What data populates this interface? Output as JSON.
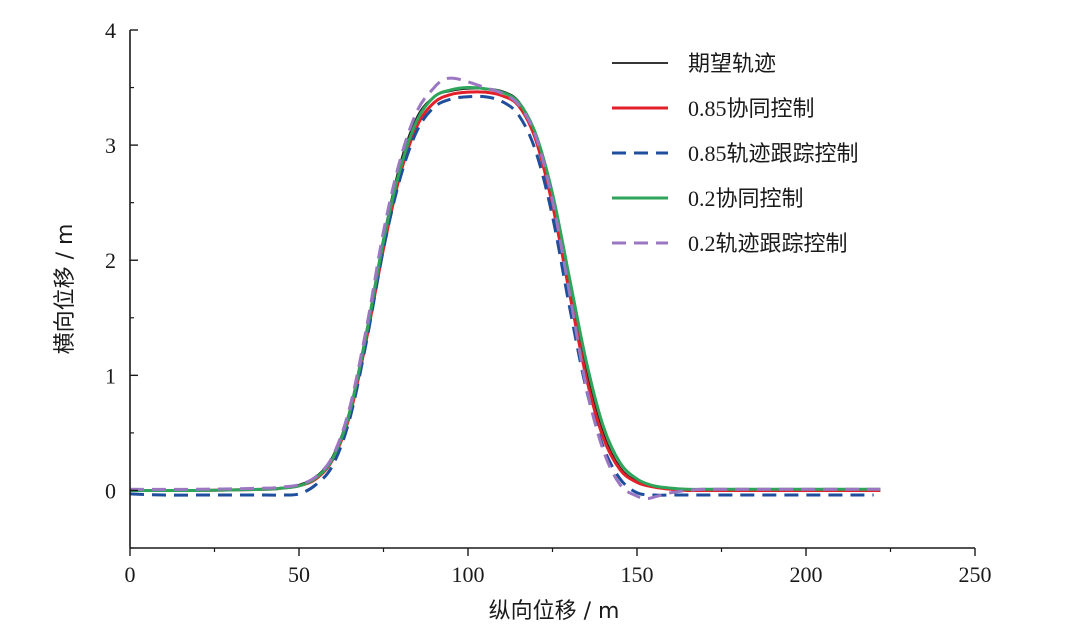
{
  "chart_data": {
    "type": "line",
    "xlabel": "纵向位移 / m",
    "ylabel": "横向位移 / m",
    "xlim": [
      0,
      250
    ],
    "ylim": [
      -0.5,
      4
    ],
    "xticks": [
      "0",
      "50",
      "100",
      "150",
      "200",
      "250"
    ],
    "yticks": [
      "0",
      "1",
      "2",
      "3",
      "4"
    ],
    "grid": false,
    "legend_position": "top-right",
    "series": [
      {
        "name": "期望轨迹",
        "color": "#1a1a1a",
        "dash": "solid",
        "x": [
          0,
          20,
          40,
          45,
          50,
          55,
          60,
          65,
          70,
          75,
          80,
          85,
          90,
          95,
          100,
          105,
          110,
          115,
          120,
          125,
          130,
          135,
          140,
          145,
          150,
          155,
          160,
          165,
          170,
          180,
          200,
          222
        ],
        "y": [
          0,
          0,
          0.01,
          0.02,
          0.05,
          0.12,
          0.3,
          0.7,
          1.4,
          2.2,
          2.85,
          3.25,
          3.42,
          3.47,
          3.49,
          3.49,
          3.47,
          3.38,
          3.1,
          2.55,
          1.8,
          1.05,
          0.5,
          0.2,
          0.08,
          0.03,
          0.01,
          0,
          0,
          0,
          0,
          0
        ]
      },
      {
        "name": "0.85协同控制",
        "color": "#e3202a",
        "dash": "solid",
        "x": [
          0,
          20,
          40,
          45,
          50,
          55,
          60,
          65,
          70,
          75,
          80,
          85,
          90,
          95,
          100,
          105,
          110,
          115,
          120,
          125,
          130,
          135,
          140,
          145,
          150,
          155,
          160,
          165,
          170,
          180,
          200,
          222
        ],
        "y": [
          0,
          0,
          0.01,
          0.02,
          0.04,
          0.1,
          0.27,
          0.65,
          1.32,
          2.1,
          2.75,
          3.17,
          3.37,
          3.44,
          3.46,
          3.46,
          3.43,
          3.34,
          3.05,
          2.48,
          1.72,
          0.98,
          0.46,
          0.18,
          0.07,
          0.03,
          0.01,
          0,
          0,
          0,
          0,
          0
        ]
      },
      {
        "name": "0.85轨迹跟踪控制",
        "color": "#1f4e9c",
        "dash": "dashed",
        "x": [
          0,
          10,
          20,
          30,
          40,
          45,
          50,
          55,
          60,
          65,
          70,
          75,
          80,
          85,
          90,
          95,
          100,
          105,
          110,
          115,
          120,
          125,
          130,
          135,
          140,
          145,
          150,
          155,
          160,
          165,
          170,
          180,
          200,
          220
        ],
        "y": [
          -0.03,
          -0.04,
          -0.04,
          -0.04,
          -0.04,
          -0.04,
          -0.03,
          0.05,
          0.22,
          0.62,
          1.3,
          2.1,
          2.72,
          3.13,
          3.33,
          3.4,
          3.42,
          3.42,
          3.38,
          3.26,
          2.95,
          2.38,
          1.6,
          0.88,
          0.38,
          0.1,
          -0.02,
          -0.04,
          -0.04,
          -0.04,
          -0.04,
          -0.04,
          -0.04,
          -0.04
        ]
      },
      {
        "name": "0.2协同控制",
        "color": "#2ea55a",
        "dash": "solid",
        "x": [
          0,
          20,
          40,
          45,
          50,
          55,
          60,
          65,
          70,
          75,
          80,
          85,
          90,
          95,
          100,
          105,
          110,
          115,
          120,
          125,
          130,
          135,
          140,
          145,
          150,
          155,
          160,
          165,
          170,
          180,
          200,
          222
        ],
        "y": [
          0,
          0,
          0.01,
          0.02,
          0.04,
          0.11,
          0.28,
          0.68,
          1.37,
          2.17,
          2.8,
          3.22,
          3.42,
          3.48,
          3.5,
          3.49,
          3.46,
          3.37,
          3.1,
          2.58,
          1.85,
          1.12,
          0.56,
          0.24,
          0.1,
          0.04,
          0.02,
          0.01,
          0.01,
          0.01,
          0.01,
          0.01
        ]
      },
      {
        "name": "0.2轨迹跟踪控制",
        "color": "#9b77c2",
        "dash": "dashed",
        "x": [
          0,
          20,
          40,
          45,
          50,
          55,
          60,
          65,
          70,
          75,
          80,
          85,
          90,
          93,
          96,
          100,
          105,
          110,
          115,
          120,
          125,
          130,
          135,
          140,
          145,
          150,
          153,
          156,
          160,
          165,
          170,
          180,
          200,
          222
        ],
        "y": [
          0.01,
          0.01,
          0.02,
          0.03,
          0.05,
          0.12,
          0.3,
          0.72,
          1.42,
          2.25,
          2.88,
          3.3,
          3.5,
          3.57,
          3.58,
          3.55,
          3.5,
          3.45,
          3.35,
          3.08,
          2.52,
          1.72,
          0.9,
          0.35,
          0.05,
          -0.05,
          -0.07,
          -0.05,
          -0.02,
          0,
          0.01,
          0.01,
          0.01,
          0.01
        ]
      }
    ]
  }
}
